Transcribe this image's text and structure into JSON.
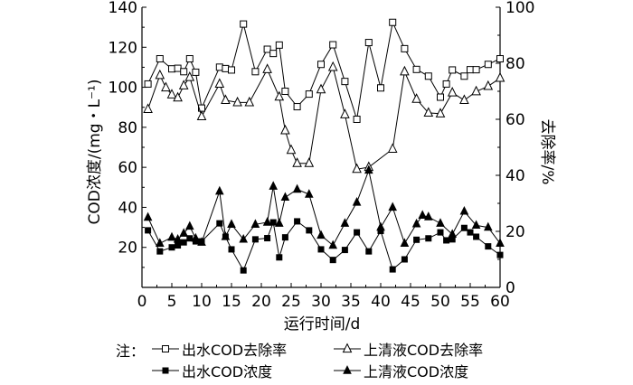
{
  "chart_data": {
    "type": "line",
    "xlabel": "运行时间/d",
    "ylabel_left": "COD浓度/(mg・L⁻¹)",
    "ylabel_right": "去除率/%",
    "xlim": [
      0,
      60
    ],
    "ylim_left": [
      0,
      140
    ],
    "ylim_right": [
      0,
      100
    ],
    "x_ticks": [
      "0",
      "5",
      "10",
      "15",
      "20",
      "25",
      "30",
      "35",
      "40",
      "45",
      "50",
      "55",
      "60"
    ],
    "y_left_ticks": [
      "20",
      "40",
      "60",
      "80",
      "100",
      "120",
      "140"
    ],
    "y_right_ticks": [
      "0",
      "20",
      "40",
      "60",
      "80",
      "100"
    ],
    "legend_prefix": "注：",
    "grid": false,
    "series": [
      {
        "name": "出水COD去除率",
        "axis": "right",
        "marker": "square-open",
        "points": [
          [
            1,
            72.6
          ],
          [
            3,
            81.6
          ],
          [
            5,
            78
          ],
          [
            6,
            78.2
          ],
          [
            7,
            77
          ],
          [
            8,
            81.6
          ],
          [
            9,
            76.8
          ],
          [
            10,
            64
          ],
          [
            13,
            78.6
          ],
          [
            14,
            78.1
          ],
          [
            15,
            77.6
          ],
          [
            17,
            94
          ],
          [
            19,
            77
          ],
          [
            21,
            85
          ],
          [
            22,
            83.5
          ],
          [
            23,
            86.5
          ],
          [
            24,
            70
          ],
          [
            26,
            64.5
          ],
          [
            28,
            69
          ],
          [
            30,
            79.6
          ],
          [
            32,
            86.6
          ],
          [
            34,
            73.5
          ],
          [
            36,
            60
          ],
          [
            38,
            87.4
          ],
          [
            40,
            71.2
          ],
          [
            42,
            94.6
          ],
          [
            44,
            85.2
          ],
          [
            46,
            77.8
          ],
          [
            48,
            75.4
          ],
          [
            50,
            67.9
          ],
          [
            51,
            72.6
          ],
          [
            52,
            77.6
          ],
          [
            54,
            75.4
          ],
          [
            55,
            77.7
          ],
          [
            56,
            77.7
          ],
          [
            58,
            79.6
          ],
          [
            60,
            81.6
          ]
        ]
      },
      {
        "name": "上清液COD去除率",
        "axis": "right",
        "marker": "triangle-open",
        "points": [
          [
            1,
            63.6
          ],
          [
            3,
            75.7
          ],
          [
            4,
            71.3
          ],
          [
            5,
            68.8
          ],
          [
            6,
            67.7
          ],
          [
            7,
            72
          ],
          [
            8,
            75
          ],
          [
            10,
            61
          ],
          [
            13,
            72.6
          ],
          [
            14,
            66.8
          ],
          [
            16,
            66
          ],
          [
            18,
            66
          ],
          [
            21,
            77.8
          ],
          [
            23,
            68
          ],
          [
            24,
            56
          ],
          [
            25,
            49
          ],
          [
            26,
            44.3
          ],
          [
            28,
            44.3
          ],
          [
            30,
            70.6
          ],
          [
            32,
            78.6
          ],
          [
            34,
            61.7
          ],
          [
            36,
            42.2
          ],
          [
            38,
            42.9
          ],
          [
            42,
            49.4
          ],
          [
            44,
            77
          ],
          [
            46,
            67.2
          ],
          [
            48,
            62.3
          ],
          [
            50,
            62
          ],
          [
            52,
            69.5
          ],
          [
            54,
            66.8
          ],
          [
            56,
            69.9
          ],
          [
            58,
            71.8
          ],
          [
            60,
            74.7
          ]
        ]
      },
      {
        "name": "出水COD浓度",
        "axis": "left",
        "marker": "square-filled",
        "points": [
          [
            1,
            28.5
          ],
          [
            3,
            18
          ],
          [
            5,
            20
          ],
          [
            6,
            21
          ],
          [
            7,
            22.5
          ],
          [
            8,
            24.5
          ],
          [
            9,
            23
          ],
          [
            10,
            23
          ],
          [
            13,
            32
          ],
          [
            14,
            25.3
          ],
          [
            15,
            19
          ],
          [
            17,
            8.5
          ],
          [
            19,
            24
          ],
          [
            21,
            24.6
          ],
          [
            22,
            32.5
          ],
          [
            23,
            15
          ],
          [
            24,
            25
          ],
          [
            26,
            33
          ],
          [
            28,
            28.5
          ],
          [
            30,
            19
          ],
          [
            32,
            13.7
          ],
          [
            34,
            18.7
          ],
          [
            36,
            27.5
          ],
          [
            38,
            18
          ],
          [
            40,
            28.2
          ],
          [
            42,
            9
          ],
          [
            44,
            14
          ],
          [
            46,
            23.8
          ],
          [
            48,
            24.5
          ],
          [
            50,
            27.5
          ],
          [
            51,
            23.5
          ],
          [
            52,
            24
          ],
          [
            54,
            29.7
          ],
          [
            55,
            27.5
          ],
          [
            56,
            25.3
          ],
          [
            58,
            20.5
          ],
          [
            60,
            16.2
          ]
        ]
      },
      {
        "name": "上清液COD浓度",
        "axis": "left",
        "marker": "triangle-filled",
        "points": [
          [
            1,
            35
          ],
          [
            3,
            22
          ],
          [
            5,
            25
          ],
          [
            6,
            24
          ],
          [
            7,
            27
          ],
          [
            8,
            30.5
          ],
          [
            9,
            24.5
          ],
          [
            10,
            22.5
          ],
          [
            13,
            48
          ],
          [
            14,
            25.3
          ],
          [
            15,
            31.5
          ],
          [
            17,
            24
          ],
          [
            19,
            31.5
          ],
          [
            21,
            32.5
          ],
          [
            22,
            50.5
          ],
          [
            23,
            32
          ],
          [
            24,
            45
          ],
          [
            26,
            49
          ],
          [
            28,
            46.5
          ],
          [
            30,
            26
          ],
          [
            32,
            21
          ],
          [
            34,
            32
          ],
          [
            36,
            42.5
          ],
          [
            38,
            58.5
          ],
          [
            40,
            30
          ],
          [
            42,
            40
          ],
          [
            44,
            22
          ],
          [
            46,
            31.7
          ],
          [
            47,
            36
          ],
          [
            48,
            35.2
          ],
          [
            50,
            32
          ],
          [
            52,
            26.5
          ],
          [
            54,
            38
          ],
          [
            56,
            31
          ],
          [
            58,
            30
          ],
          [
            60,
            22
          ]
        ]
      }
    ]
  }
}
